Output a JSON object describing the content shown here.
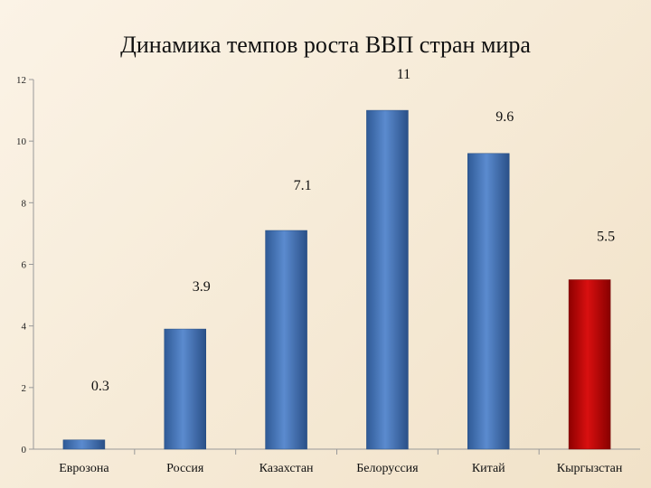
{
  "chart_data": {
    "type": "bar",
    "title": "Динамика темпов роста ВВП стран мира",
    "categories": [
      "Еврозона",
      "Россия",
      "Казахстан",
      "Белоруссия",
      "Китай",
      "Кыргызстан"
    ],
    "values": [
      0.3,
      3.9,
      7.1,
      11,
      9.6,
      5.5
    ],
    "value_labels": [
      "0.3",
      "3.9",
      "7.1",
      "11",
      "9.6",
      "5.5"
    ],
    "y_ticks": [
      "0",
      "2",
      "4",
      "6",
      "8",
      "10",
      "12"
    ],
    "ylim": [
      0,
      12
    ],
    "grid": false,
    "legend": "none",
    "colors": {
      "default_bar": "#4a78b8",
      "highlight_bar": "#c00000",
      "highlight_index": 5
    }
  }
}
